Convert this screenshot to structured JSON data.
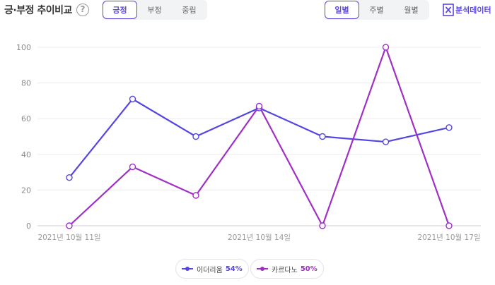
{
  "header": {
    "title": "긍·부정 추이비교",
    "help_glyph": "?"
  },
  "sentiment_tabs": [
    "긍정",
    "부정",
    "중립"
  ],
  "period_tabs": [
    "일별",
    "주별",
    "월별"
  ],
  "analysis_data_label": "분석데이터",
  "colors": {
    "accent": "#5b48e0",
    "series1": "#5546e3",
    "series2": "#a02fc6"
  },
  "chart_data": {
    "type": "line",
    "x": [
      "2021년 10월 11일",
      "2021년 10월 12일",
      "2021년 10월 13일",
      "2021년 10월 14일",
      "2021년 10월 15일",
      "2021년 10월 16일",
      "2021년 10월 17일"
    ],
    "x_tick_labels": [
      "2021년 10월 11일",
      "2021년 10월 14일",
      "2021년 10월 17일"
    ],
    "ylim": [
      0,
      100
    ],
    "yticks": [
      0,
      20,
      40,
      60,
      80,
      100
    ],
    "grid": true,
    "legend_position": "bottom",
    "series": [
      {
        "name": "이더리움",
        "percent": "54%",
        "values": [
          27,
          71,
          50,
          66,
          50,
          47,
          55
        ]
      },
      {
        "name": "카르다노",
        "percent": "50%",
        "values": [
          0,
          33,
          17,
          67,
          0,
          100,
          0
        ]
      }
    ]
  }
}
